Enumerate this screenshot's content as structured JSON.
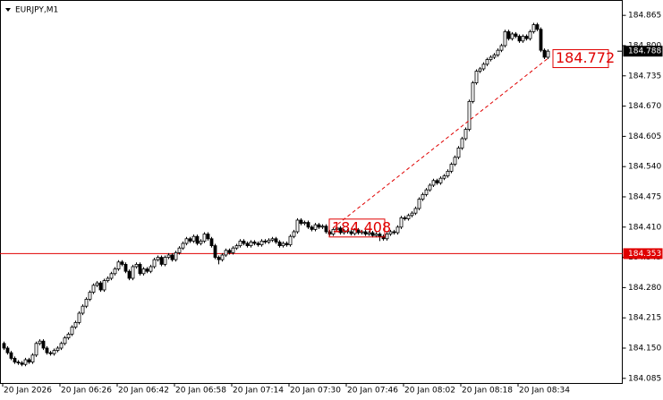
{
  "chart_data": {
    "type": "candlestick",
    "title": "EURJPY,M1",
    "x_labels": [
      "20 Jan 2026",
      "20 Jan 06:26",
      "20 Jan 06:42",
      "20 Jan 06:58",
      "20 Jan 07:14",
      "20 Jan 07:30",
      "20 Jan 07:46",
      "20 Jan 08:02",
      "20 Jan 08:18",
      "20 Jan 08:34"
    ],
    "ylim": [
      184.075,
      184.898
    ],
    "yticks": [
      184.865,
      {
        "value": 184.8,
        "label": "184.800"
      },
      184.735,
      {
        "value": 184.67,
        "label": "184.670"
      },
      184.605,
      {
        "value": 184.54,
        "label": "184.540"
      },
      184.475,
      {
        "value": 184.41,
        "label": "184.410"
      },
      184.345,
      {
        "value": 184.28,
        "label": "184.280"
      },
      184.215,
      {
        "value": 184.15,
        "label": "184.150"
      },
      184.085
    ],
    "hline": 184.353,
    "hline_color": "#e00000",
    "last_price": 184.788,
    "trend": {
      "start": 184.408,
      "end": 184.772,
      "color": "#e00000"
    },
    "open": [
      184.16,
      184.15,
      184.14,
      184.128,
      184.12,
      184.118,
      184.115,
      184.125,
      184.12,
      184.135,
      184.16,
      184.165,
      184.15,
      184.14,
      184.138,
      184.145,
      184.15,
      184.16,
      184.172,
      184.18,
      184.195,
      184.205,
      184.225,
      184.24,
      184.255,
      184.27,
      184.285,
      184.29,
      184.275,
      184.295,
      184.3,
      184.31,
      184.32,
      184.335,
      184.33,
      184.315,
      184.3,
      184.325,
      184.33,
      184.31,
      184.32,
      184.315,
      184.325,
      184.34,
      184.345,
      184.33,
      184.345,
      184.35,
      184.34,
      184.355,
      184.365,
      184.375,
      184.385,
      184.38,
      184.39,
      184.375,
      184.38,
      184.395,
      184.385,
      184.37,
      184.345,
      184.34,
      184.35,
      184.36,
      184.355,
      184.365,
      184.37,
      184.38,
      184.375,
      184.37,
      184.378,
      184.375,
      184.372,
      184.38,
      184.378,
      184.382,
      184.385,
      184.378,
      184.37,
      184.375,
      184.372,
      184.39,
      184.4,
      184.425,
      184.418,
      184.42,
      184.41,
      184.405,
      184.415,
      184.41,
      184.412,
      184.4,
      184.395,
      184.405,
      184.408,
      184.398,
      184.402,
      184.4,
      184.396,
      184.404,
      184.398,
      184.4,
      184.395,
      184.398,
      184.392,
      184.395,
      184.39,
      184.385,
      184.395,
      184.4,
      184.398,
      184.41,
      184.43,
      184.428,
      184.435,
      184.44,
      184.45,
      184.47,
      184.48,
      184.49,
      184.5,
      184.51,
      184.505,
      184.515,
      184.52,
      184.53,
      184.545,
      184.56,
      184.58,
      184.6,
      184.62,
      184.68,
      184.72,
      184.745,
      184.75,
      184.76,
      184.77,
      184.775,
      184.78,
      184.79,
      184.8,
      184.83,
      184.815,
      184.825,
      184.82,
      184.81,
      184.82,
      184.815,
      184.83,
      184.845,
      184.835,
      184.79,
      184.775
    ],
    "high": [
      184.164,
      184.154,
      184.144,
      184.132,
      184.124,
      184.122,
      184.129,
      184.129,
      184.139,
      184.164,
      184.169,
      184.169,
      184.154,
      184.144,
      184.149,
      184.154,
      184.164,
      184.176,
      184.184,
      184.199,
      184.209,
      184.229,
      184.244,
      184.259,
      184.274,
      184.289,
      184.294,
      184.294,
      184.299,
      184.304,
      184.314,
      184.324,
      184.339,
      184.339,
      184.334,
      184.319,
      184.329,
      184.334,
      184.334,
      184.324,
      184.324,
      184.329,
      184.344,
      184.349,
      184.349,
      184.349,
      184.354,
      184.354,
      184.359,
      184.369,
      184.379,
      184.389,
      184.389,
      184.394,
      184.394,
      184.384,
      184.399,
      184.399,
      184.389,
      184.374,
      184.349,
      184.354,
      184.364,
      184.364,
      184.369,
      184.374,
      184.384,
      184.384,
      184.379,
      184.382,
      184.382,
      184.379,
      184.384,
      184.384,
      184.386,
      184.389,
      184.389,
      184.382,
      184.379,
      184.379,
      184.394,
      184.404,
      184.429,
      184.429,
      184.424,
      184.424,
      184.414,
      184.419,
      184.419,
      184.416,
      184.416,
      184.404,
      184.409,
      184.412,
      184.412,
      184.406,
      184.406,
      184.404,
      184.408,
      184.408,
      184.404,
      184.404,
      184.402,
      184.402,
      184.399,
      184.399,
      184.394,
      184.399,
      184.404,
      184.404,
      184.414,
      184.434,
      184.434,
      184.439,
      184.444,
      184.454,
      184.474,
      184.484,
      184.494,
      184.504,
      184.514,
      184.514,
      184.519,
      184.524,
      184.534,
      184.549,
      184.564,
      184.584,
      184.604,
      184.624,
      184.684,
      184.724,
      184.749,
      184.754,
      184.764,
      184.774,
      184.779,
      184.784,
      184.794,
      184.804,
      184.834,
      184.834,
      184.829,
      184.829,
      184.824,
      184.824,
      184.824,
      184.834,
      184.849,
      184.849,
      184.839,
      184.794,
      184.792
    ],
    "low": [
      184.146,
      184.136,
      184.124,
      184.116,
      184.114,
      184.111,
      184.111,
      184.116,
      184.116,
      184.131,
      184.156,
      184.146,
      184.136,
      184.134,
      184.134,
      184.141,
      184.146,
      184.156,
      184.168,
      184.176,
      184.191,
      184.201,
      184.221,
      184.236,
      184.251,
      184.266,
      184.281,
      184.271,
      184.271,
      184.291,
      184.296,
      184.306,
      184.316,
      184.326,
      184.311,
      184.296,
      184.296,
      184.321,
      184.306,
      184.306,
      184.311,
      184.311,
      184.321,
      184.336,
      184.326,
      184.326,
      184.341,
      184.336,
      184.336,
      184.351,
      184.361,
      184.371,
      184.376,
      184.376,
      184.371,
      184.371,
      184.376,
      184.381,
      184.366,
      184.341,
      184.33,
      184.336,
      184.346,
      184.351,
      184.351,
      184.361,
      184.366,
      184.371,
      184.366,
      184.366,
      184.371,
      184.368,
      184.368,
      184.374,
      184.374,
      184.378,
      184.374,
      184.366,
      184.366,
      184.368,
      184.368,
      184.386,
      184.396,
      184.414,
      184.414,
      184.406,
      184.401,
      184.401,
      184.406,
      184.406,
      184.396,
      184.391,
      184.391,
      184.401,
      184.394,
      184.394,
      184.396,
      184.392,
      184.392,
      184.394,
      184.394,
      184.391,
      184.391,
      184.388,
      184.388,
      184.38,
      184.381,
      184.381,
      184.391,
      184.394,
      184.394,
      184.406,
      184.424,
      184.424,
      184.431,
      184.436,
      184.446,
      184.466,
      184.476,
      184.486,
      184.496,
      184.501,
      184.501,
      184.511,
      184.516,
      184.526,
      184.541,
      184.556,
      184.576,
      184.596,
      184.616,
      184.676,
      184.716,
      184.741,
      184.746,
      184.756,
      184.766,
      184.771,
      184.776,
      184.786,
      184.796,
      184.811,
      184.811,
      184.816,
      184.806,
      184.806,
      184.811,
      184.811,
      184.826,
      184.831,
      184.786,
      184.771,
      184.771
    ],
    "close": [
      184.15,
      184.14,
      184.128,
      184.12,
      184.118,
      184.115,
      184.125,
      184.12,
      184.135,
      184.16,
      184.165,
      184.15,
      184.14,
      184.138,
      184.145,
      184.15,
      184.16,
      184.172,
      184.18,
      184.195,
      184.205,
      184.225,
      184.24,
      184.255,
      184.27,
      184.285,
      184.29,
      184.275,
      184.295,
      184.3,
      184.31,
      184.32,
      184.335,
      184.33,
      184.315,
      184.3,
      184.325,
      184.33,
      184.31,
      184.32,
      184.315,
      184.325,
      184.34,
      184.345,
      184.33,
      184.345,
      184.35,
      184.34,
      184.355,
      184.365,
      184.375,
      184.385,
      184.38,
      184.39,
      184.375,
      184.38,
      184.395,
      184.385,
      184.37,
      184.345,
      184.34,
      184.35,
      184.36,
      184.355,
      184.365,
      184.37,
      184.38,
      184.375,
      184.37,
      184.378,
      184.375,
      184.372,
      184.38,
      184.378,
      184.382,
      184.385,
      184.378,
      184.37,
      184.375,
      184.372,
      184.39,
      184.4,
      184.425,
      184.418,
      184.42,
      184.41,
      184.405,
      184.415,
      184.41,
      184.412,
      184.4,
      184.395,
      184.405,
      184.408,
      184.398,
      184.402,
      184.4,
      184.396,
      184.404,
      184.398,
      184.4,
      184.395,
      184.398,
      184.392,
      184.395,
      184.39,
      184.385,
      184.395,
      184.4,
      184.398,
      184.41,
      184.43,
      184.428,
      184.435,
      184.44,
      184.45,
      184.47,
      184.48,
      184.49,
      184.5,
      184.51,
      184.505,
      184.515,
      184.52,
      184.53,
      184.545,
      184.56,
      184.58,
      184.6,
      184.62,
      184.68,
      184.72,
      184.745,
      184.75,
      184.76,
      184.77,
      184.775,
      184.78,
      184.79,
      184.8,
      184.83,
      184.815,
      184.825,
      184.82,
      184.81,
      184.82,
      184.815,
      184.83,
      184.845,
      184.835,
      184.79,
      184.775,
      184.788
    ]
  }
}
